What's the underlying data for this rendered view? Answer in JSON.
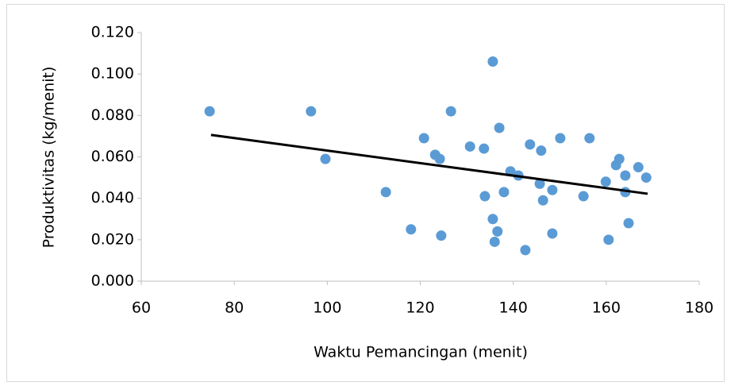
{
  "chart_data": {
    "type": "scatter",
    "x_label": "Waktu Pemancingan (menit)",
    "y_label": "Produktivitas (kg/menit)",
    "color": "#5b9bd5",
    "x": [
      74.7,
      96.5,
      99.6,
      112.6,
      118.0,
      120.8,
      123.2,
      126.6,
      124.5,
      124.2,
      130.7,
      133.7,
      133.9,
      135.6,
      135.6,
      136.0,
      136.6,
      137.0,
      138.0,
      139.4,
      141.1,
      142.6,
      143.6,
      146.0,
      145.7,
      146.4,
      148.4,
      148.4,
      150.1,
      155.1,
      156.4,
      159.9,
      160.5,
      162.1,
      162.8,
      164.1,
      164.1,
      164.8,
      166.9,
      168.6
    ],
    "values": [
      0.082,
      0.082,
      0.059,
      0.043,
      0.025,
      0.069,
      0.061,
      0.082,
      0.022,
      0.059,
      0.065,
      0.064,
      0.041,
      0.106,
      0.03,
      0.019,
      0.024,
      0.074,
      0.043,
      0.053,
      0.051,
      0.015,
      0.066,
      0.063,
      0.047,
      0.039,
      0.044,
      0.023,
      0.069,
      0.041,
      0.069,
      0.048,
      0.02,
      0.056,
      0.059,
      0.051,
      0.043,
      0.028,
      0.055,
      0.05
    ],
    "trendline": {
      "color": "#000000",
      "x": [
        75.0,
        168.9
      ],
      "values": [
        0.0706,
        0.0422
      ]
    },
    "xlim": [
      60,
      180
    ],
    "xticks": [
      60,
      80,
      100,
      120,
      140,
      160,
      180
    ],
    "ylim": [
      0,
      0.12
    ],
    "yticks": [
      {
        "value": 0,
        "label": "0.000"
      },
      {
        "value": 0.02,
        "label": "0.020"
      },
      {
        "value": 0.04,
        "label": "0.040"
      },
      {
        "value": 0.06,
        "label": "0.060"
      },
      {
        "value": 0.08,
        "label": "0.080"
      },
      {
        "value": 0.1,
        "label": "0.100"
      },
      {
        "value": 0.12,
        "label": "0.120"
      }
    ],
    "grid": false
  }
}
